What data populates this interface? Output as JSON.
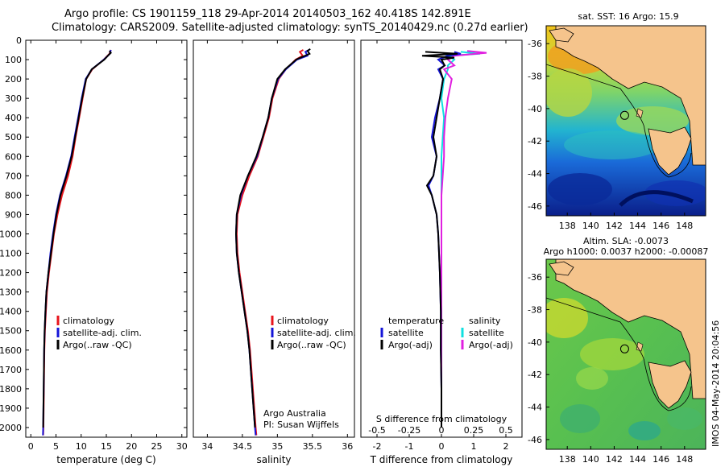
{
  "header": {
    "line1": "Argo profile: CS 1901159_118 29-Apr-2014 20140503_162 40.418S 142.891E",
    "line2": "Climatology: CARS2009. Satellite-adjusted climatology: synTS_20140429.nc (0.27d earlier)"
  },
  "colors": {
    "climatology": "#e8141c",
    "satellite": "#1414d8",
    "argo": "#000000",
    "salinity_satellite": "#10e0e0",
    "salinity_argo": "#e020e0",
    "land": "#f5c48c"
  },
  "chart_data": [
    {
      "type": "line",
      "name": "temperature_profile",
      "xlabel": "temperature (deg C)",
      "xlim": [
        -1,
        31
      ],
      "xticks": [
        "0",
        "5",
        "10",
        "15",
        "20",
        "25",
        "30"
      ],
      "xtick_values": [
        0,
        5,
        10,
        15,
        20,
        25,
        30
      ],
      "ylim": [
        2050,
        0
      ],
      "yticks": [
        "0",
        "100",
        "200",
        "300",
        "400",
        "500",
        "600",
        "700",
        "800",
        "900",
        "1000",
        "1100",
        "1200",
        "1300",
        "1400",
        "1500",
        "1600",
        "1700",
        "1800",
        "1900",
        "2000"
      ],
      "ytick_values": [
        0,
        100,
        200,
        300,
        400,
        500,
        600,
        700,
        800,
        900,
        1000,
        1100,
        1200,
        1300,
        1400,
        1500,
        1600,
        1700,
        1800,
        1900,
        2000
      ],
      "legend": [
        "climatology",
        "satellite-adj. clim.",
        "Argo(..raw -QC)"
      ],
      "legend_position": "lower-middle",
      "series": [
        {
          "name": "climatology",
          "color_key": "climatology",
          "depth": [
            50,
            70,
            100,
            150,
            200,
            300,
            400,
            500,
            600,
            700,
            800,
            900,
            1000,
            1100,
            1200,
            1300,
            1400,
            1500,
            1600,
            1800,
            2000,
            2040
          ],
          "values": [
            15.9,
            15.6,
            14.5,
            12.2,
            11.0,
            10.3,
            9.6,
            8.9,
            8.3,
            7.4,
            6.2,
            5.3,
            4.6,
            4.1,
            3.6,
            3.2,
            3.0,
            2.8,
            2.7,
            2.6,
            2.5,
            2.45
          ]
        },
        {
          "name": "satellite-adj. clim.",
          "color_key": "satellite",
          "depth": [
            50,
            70,
            100,
            150,
            200,
            300,
            400,
            500,
            600,
            700,
            800,
            900,
            1000,
            1100,
            1200,
            1300,
            1400,
            1500,
            1600,
            1800,
            2000,
            2040
          ],
          "values": [
            15.9,
            15.7,
            14.5,
            12.1,
            10.9,
            10.1,
            9.4,
            8.7,
            8.0,
            7.0,
            5.8,
            5.0,
            4.4,
            3.9,
            3.5,
            3.1,
            2.9,
            2.75,
            2.65,
            2.55,
            2.45,
            2.4
          ]
        },
        {
          "name": "Argo(..raw -QC)",
          "color_key": "argo",
          "depth": [
            55,
            65,
            75,
            100,
            150,
            200,
            300,
            400,
            500,
            600,
            700,
            800,
            900,
            1000,
            1100,
            1200,
            1300,
            1400,
            1500,
            1600,
            1800,
            2000
          ],
          "values": [
            15.6,
            15.9,
            15.5,
            14.6,
            12.1,
            11.0,
            10.2,
            9.5,
            8.8,
            8.1,
            7.1,
            5.9,
            5.1,
            4.5,
            4.0,
            3.5,
            3.1,
            2.9,
            2.75,
            2.65,
            2.55,
            2.45
          ]
        }
      ]
    },
    {
      "type": "line",
      "name": "salinity_profile",
      "xlabel": "salinity",
      "xlim": [
        33.8,
        36.1
      ],
      "xticks": [
        "34",
        "34.5",
        "35",
        "35.5",
        "36"
      ],
      "xtick_values": [
        34,
        34.5,
        35,
        35.5,
        36
      ],
      "ylim": [
        2050,
        0
      ],
      "legend": [
        "climatology",
        "satellite-adj. clim.",
        "Argo(..raw -QC)"
      ],
      "legend_position": "lower-middle",
      "annotation": [
        "Argo Australia",
        "PI: Susan Wijffels"
      ],
      "series": [
        {
          "name": "climatology",
          "color_key": "climatology",
          "depth": [
            50,
            60,
            80,
            100,
            150,
            200,
            300,
            400,
            500,
            600,
            700,
            800,
            900,
            1000,
            1100,
            1200,
            1300,
            1400,
            1500,
            1600,
            1800,
            2000,
            2040
          ],
          "values": [
            35.37,
            35.32,
            35.36,
            35.26,
            35.12,
            35.02,
            34.93,
            34.88,
            34.8,
            34.72,
            34.6,
            34.5,
            34.43,
            34.42,
            34.43,
            34.46,
            34.5,
            34.54,
            34.58,
            34.61,
            34.65,
            34.69,
            34.7
          ]
        },
        {
          "name": "satellite-adj. clim.",
          "color_key": "satellite",
          "depth": [
            50,
            60,
            80,
            100,
            150,
            200,
            300,
            400,
            500,
            600,
            700,
            800,
            900,
            1000,
            1100,
            1200,
            1300,
            1400,
            1500,
            1600,
            1800,
            2000,
            2040
          ],
          "values": [
            35.45,
            35.4,
            35.43,
            35.28,
            35.12,
            35.01,
            34.92,
            34.87,
            34.79,
            34.71,
            34.58,
            34.48,
            34.42,
            34.41,
            34.42,
            34.45,
            34.49,
            34.53,
            34.57,
            34.6,
            34.64,
            34.68,
            34.69
          ]
        },
        {
          "name": "Argo(..raw -QC)",
          "color_key": "argo",
          "depth": [
            45,
            55,
            70,
            90,
            100,
            150,
            200,
            300,
            400,
            500,
            600,
            700,
            800,
            900,
            1000,
            1100,
            1200,
            1300,
            1400,
            1500,
            1600,
            1800,
            2000
          ],
          "values": [
            35.47,
            35.43,
            35.46,
            35.33,
            35.27,
            35.11,
            35.0,
            34.92,
            34.87,
            34.79,
            34.7,
            34.58,
            34.47,
            34.42,
            34.41,
            34.42,
            34.45,
            34.49,
            34.53,
            34.57,
            34.6,
            34.64,
            34.68
          ]
        }
      ]
    },
    {
      "type": "line",
      "name": "difference_profile",
      "xlabel": "T difference from climatology",
      "xlabel_top": "S difference from climatology",
      "xlim": [
        -2.5,
        2.5
      ],
      "xticks": [
        "-2",
        "-1",
        "0",
        "1",
        "2"
      ],
      "xtick_values": [
        -2,
        -1,
        0,
        1,
        2
      ],
      "s_ticks": [
        "-0.5",
        "-0.25",
        "0",
        "0.25",
        "0.5"
      ],
      "ylim": [
        2050,
        0
      ],
      "legend": [
        "temperature",
        "satellite",
        "Argo(-adj)",
        "salinity",
        "satellite",
        "Argo(-adj)"
      ],
      "legend_position": "lower-middle",
      "series": [
        {
          "name": "satellite",
          "color_key": "satellite",
          "depth": [
            60,
            70,
            80,
            100,
            130,
            150,
            200,
            300,
            400,
            500,
            600,
            700,
            750,
            800,
            900,
            1000,
            1200,
            1400,
            1600,
            1800,
            2000
          ],
          "values": [
            0.4,
            0.6,
            0.2,
            -0.1,
            0.1,
            -0.1,
            0.05,
            -0.05,
            -0.2,
            -0.3,
            -0.15,
            -0.25,
            -0.4,
            -0.3,
            -0.15,
            -0.1,
            -0.05,
            -0.02,
            -0.02,
            0.0,
            0.0
          ]
        },
        {
          "name": "Argo(-adj)",
          "color_key": "argo",
          "depth": [
            60,
            70,
            80,
            90,
            100,
            130,
            150,
            200,
            300,
            400,
            500,
            600,
            700,
            750,
            800,
            900,
            1000,
            1200,
            1400,
            1600,
            1800,
            2000
          ],
          "values": [
            -0.5,
            0.5,
            -0.6,
            0.4,
            0.0,
            0.1,
            -0.05,
            0.05,
            -0.05,
            -0.15,
            -0.25,
            -0.15,
            -0.25,
            -0.45,
            -0.3,
            -0.15,
            -0.1,
            -0.05,
            -0.02,
            -0.02,
            0.0,
            0.0
          ]
        }
      ],
      "salinity_series": [
        {
          "name": "satellite",
          "color_key": "salinity_satellite",
          "depth": [
            60,
            70,
            80,
            100,
            130,
            150,
            200,
            300,
            400,
            600,
            800,
            1000,
            1200,
            1400,
            1600,
            1800,
            2000
          ],
          "values": [
            0.15,
            0.3,
            0.05,
            0.1,
            0.05,
            0.05,
            0.02,
            0.0,
            0.02,
            0.0,
            0.0,
            0.0,
            0.0,
            0.0,
            0.0,
            0.0,
            0.0
          ]
        },
        {
          "name": "Argo(-adj)",
          "color_key": "salinity_argo",
          "depth": [
            55,
            65,
            80,
            100,
            130,
            150,
            200,
            300,
            400,
            500,
            600,
            800,
            1000,
            1200,
            1400,
            1600,
            1800,
            2000
          ],
          "values": [
            0.2,
            0.35,
            0.1,
            0.05,
            0.1,
            0.02,
            0.08,
            0.05,
            0.03,
            0.02,
            0.02,
            0.0,
            0.0,
            0.0,
            0.0,
            0.0,
            0.0,
            0.0
          ]
        }
      ]
    }
  ],
  "maps": [
    {
      "name": "sst_map",
      "title": "sat. SST: 16 Argo: 15.9",
      "yticks": [
        "-36",
        "-38",
        "-40",
        "-42",
        "-44",
        "-46"
      ],
      "xticks": [
        "138",
        "140",
        "142",
        "144",
        "146",
        "148"
      ],
      "profile_marker": {
        "lon": 142.891,
        "lat": -40.418
      }
    },
    {
      "name": "sla_map",
      "title_line1": "Altim. SLA: -0.0073",
      "title_line2": "Argo h1000: 0.0037 h2000: -0.00087",
      "yticks": [
        "-36",
        "-38",
        "-40",
        "-42",
        "-44",
        "-46"
      ],
      "xticks": [
        "138",
        "140",
        "142",
        "144",
        "146",
        "148"
      ],
      "profile_marker": {
        "lon": 142.891,
        "lat": -40.418
      }
    }
  ],
  "stamp": "IMOS 04-May-2014 20:04:56"
}
